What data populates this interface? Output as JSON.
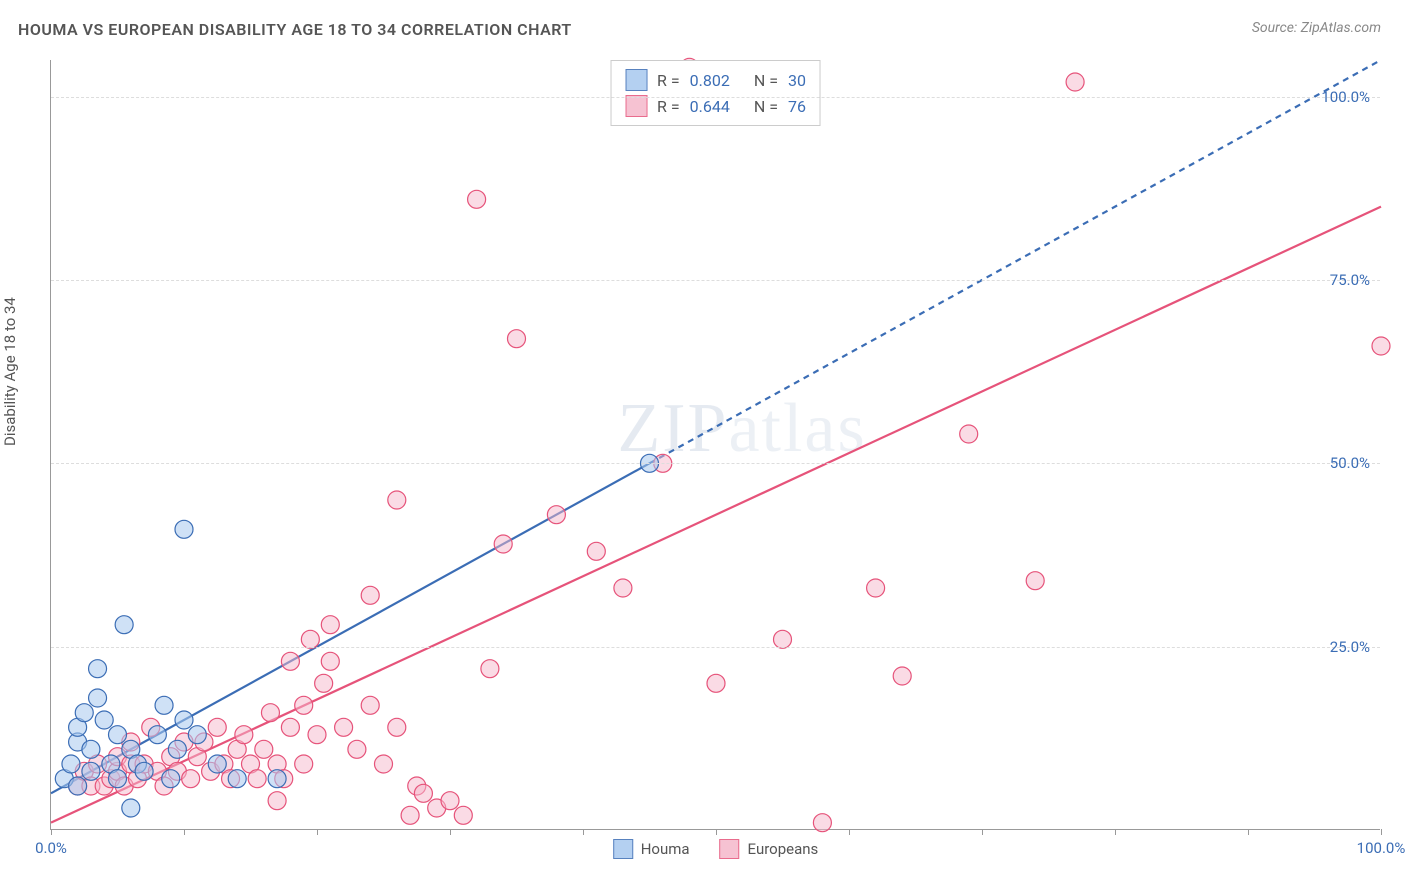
{
  "title": "HOUMA VS EUROPEAN DISABILITY AGE 18 TO 34 CORRELATION CHART",
  "source": "Source: ZipAtlas.com",
  "y_axis_label": "Disability Age 18 to 34",
  "watermark": "ZIPatlas",
  "chart": {
    "type": "scatter",
    "xlim": [
      0,
      100
    ],
    "ylim": [
      0,
      105
    ],
    "x_ticks": [
      0,
      10,
      20,
      30,
      40,
      50,
      60,
      70,
      80,
      90,
      100
    ],
    "x_tick_labels": {
      "0": "0.0%",
      "100": "100.0%"
    },
    "y_gridlines": [
      25,
      50,
      75,
      100
    ],
    "y_tick_labels": {
      "25": "25.0%",
      "50": "50.0%",
      "75": "75.0%",
      "100": "100.0%"
    },
    "background_color": "#ffffff",
    "grid_color": "#dddddd",
    "axis_color": "#999999",
    "tick_label_color": "#3b6db5",
    "marker_radius": 9,
    "marker_stroke_width": 1.2,
    "line_width": 2.2
  },
  "series": [
    {
      "name": "Houma",
      "fill_color": "#a8c8ef",
      "stroke_color": "#3b6db5",
      "fill_opacity": 0.55,
      "r_value": "0.802",
      "n_value": "30",
      "trend": {
        "x1": 0,
        "y1": 5,
        "x2": 100,
        "y2": 105,
        "solid_until_x": 45,
        "dash": "6,5"
      },
      "points": [
        [
          1,
          7
        ],
        [
          1.5,
          9
        ],
        [
          2,
          12
        ],
        [
          2,
          14
        ],
        [
          2.5,
          16
        ],
        [
          3,
          8
        ],
        [
          3,
          11
        ],
        [
          3.5,
          18
        ],
        [
          3.5,
          22
        ],
        [
          4,
          15
        ],
        [
          4.5,
          9
        ],
        [
          5,
          13
        ],
        [
          5,
          7
        ],
        [
          5.5,
          28
        ],
        [
          6,
          11
        ],
        [
          6,
          3
        ],
        [
          6.5,
          9
        ],
        [
          7,
          8
        ],
        [
          8,
          13
        ],
        [
          8.5,
          17
        ],
        [
          9,
          7
        ],
        [
          9.5,
          11
        ],
        [
          10,
          15
        ],
        [
          11,
          13
        ],
        [
          12.5,
          9
        ],
        [
          14,
          7
        ],
        [
          10,
          41
        ],
        [
          17,
          7
        ],
        [
          45,
          50
        ],
        [
          2,
          6
        ]
      ]
    },
    {
      "name": "Europeans",
      "fill_color": "#f5b8cb",
      "stroke_color": "#e6537a",
      "fill_opacity": 0.5,
      "r_value": "0.644",
      "n_value": "76",
      "trend": {
        "x1": 0,
        "y1": 1,
        "x2": 100,
        "y2": 85,
        "solid_until_x": 100,
        "dash": null
      },
      "points": [
        [
          2,
          6
        ],
        [
          2.5,
          8
        ],
        [
          3,
          6
        ],
        [
          3.5,
          9
        ],
        [
          4,
          6
        ],
        [
          4.5,
          7
        ],
        [
          5,
          8
        ],
        [
          5,
          10
        ],
        [
          5.5,
          6
        ],
        [
          6,
          9
        ],
        [
          6,
          12
        ],
        [
          6.5,
          7
        ],
        [
          7,
          9
        ],
        [
          7.5,
          14
        ],
        [
          8,
          8
        ],
        [
          8.5,
          6
        ],
        [
          9,
          10
        ],
        [
          9.5,
          8
        ],
        [
          10,
          12
        ],
        [
          10.5,
          7
        ],
        [
          11,
          10
        ],
        [
          11.5,
          12
        ],
        [
          12,
          8
        ],
        [
          12.5,
          14
        ],
        [
          13,
          9
        ],
        [
          13.5,
          7
        ],
        [
          14,
          11
        ],
        [
          14.5,
          13
        ],
        [
          15,
          9
        ],
        [
          15.5,
          7
        ],
        [
          16,
          11
        ],
        [
          16.5,
          16
        ],
        [
          17,
          9
        ],
        [
          17.5,
          7
        ],
        [
          18,
          14
        ],
        [
          18,
          23
        ],
        [
          19,
          9
        ],
        [
          19,
          17
        ],
        [
          19.5,
          26
        ],
        [
          20,
          13
        ],
        [
          20.5,
          20
        ],
        [
          21,
          28
        ],
        [
          21,
          23
        ],
        [
          22,
          14
        ],
        [
          23,
          11
        ],
        [
          24,
          17
        ],
        [
          24,
          32
        ],
        [
          25,
          9
        ],
        [
          26,
          14
        ],
        [
          26,
          45
        ],
        [
          27,
          2
        ],
        [
          27.5,
          6
        ],
        [
          28,
          5
        ],
        [
          29,
          3
        ],
        [
          30,
          4
        ],
        [
          31,
          2
        ],
        [
          32,
          86
        ],
        [
          33,
          22
        ],
        [
          34,
          39
        ],
        [
          35,
          67
        ],
        [
          38,
          43
        ],
        [
          41,
          38
        ],
        [
          43,
          33
        ],
        [
          46,
          50
        ],
        [
          48,
          104
        ],
        [
          50,
          20
        ],
        [
          52,
          103
        ],
        [
          55,
          26
        ],
        [
          58,
          1
        ],
        [
          62,
          33
        ],
        [
          64,
          21
        ],
        [
          69,
          54
        ],
        [
          74,
          34
        ],
        [
          77,
          102
        ],
        [
          100,
          66
        ],
        [
          17,
          4
        ]
      ]
    }
  ],
  "stats_legend": {
    "r_label": "R =",
    "n_label": "N ="
  },
  "bottom_legend": {
    "items": [
      "Houma",
      "Europeans"
    ]
  }
}
